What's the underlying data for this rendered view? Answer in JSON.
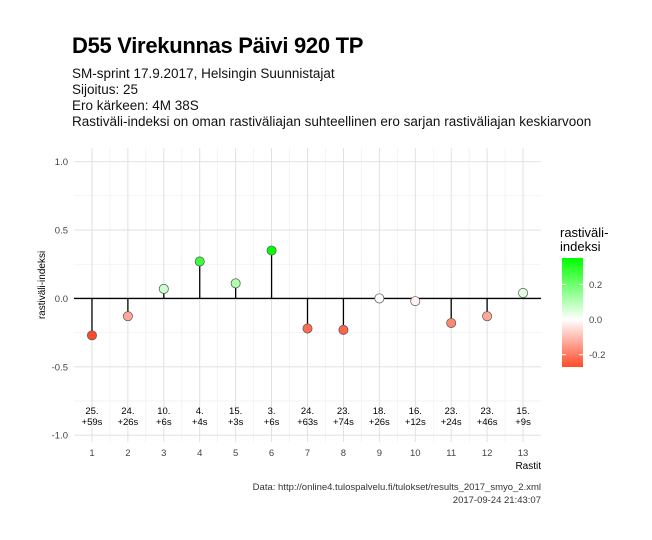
{
  "title": "D55 Virekunnas Päivi 920 TP",
  "subtitle_lines": [
    "SM-sprint 17.9.2017, Helsingin Suunnistajat",
    "Sijoitus: 25",
    "Ero kärkeen: 4M 38S",
    "Rastiväli-indeksi on oman rastiväliajan suhteellinen ero sarjan rastiväliajan keskiarvoon"
  ],
  "caption_lines": [
    "Data: http://online4.tulospalvelu.fi/tulokset/results_2017_smyo_2.xml",
    "2017-09-24 21:43:07"
  ],
  "chart_data": {
    "type": "scatter",
    "xlabel": "Rastit",
    "ylabel": "rastiväli-indeksi",
    "xlim": [
      0.5,
      13.5
    ],
    "ylim": [
      -1.05,
      1.1
    ],
    "x_ticks": [
      "1",
      "2",
      "3",
      "4",
      "5",
      "6",
      "7",
      "8",
      "9",
      "10",
      "11",
      "12",
      "13"
    ],
    "y_ticks": [
      1.0,
      0.5,
      0.0,
      -0.5,
      -1.0
    ],
    "y_tick_labels": [
      "1.0",
      "0.5",
      "0.0",
      "-0.5",
      "-1.0"
    ],
    "grid": true,
    "x": [
      1,
      2,
      3,
      4,
      5,
      6,
      7,
      8,
      9,
      10,
      11,
      12,
      13
    ],
    "values": [
      -0.27,
      -0.13,
      0.07,
      0.27,
      0.11,
      0.35,
      -0.22,
      -0.23,
      0.0,
      -0.02,
      -0.18,
      -0.13,
      0.04
    ],
    "labels_rank": [
      "25.",
      "24.",
      "10.",
      "4.",
      "15.",
      "3.",
      "24.",
      "23.",
      "18.",
      "16.",
      "23.",
      "23.",
      "15."
    ],
    "labels_diff": [
      "+59s",
      "+26s",
      "+6s",
      "+4s",
      "+3s",
      "+6s",
      "+63s",
      "+74s",
      "+26s",
      "+12s",
      "+24s",
      "+46s",
      "+9s"
    ],
    "legend": {
      "title_lines": [
        "rastiväli-",
        "indeksi"
      ],
      "ticks": [
        0.2,
        0.0,
        -0.2
      ],
      "tick_labels": [
        "0.2",
        "0.0",
        "-0.2"
      ],
      "range": [
        -0.27,
        0.35
      ],
      "colors": {
        "high": "#00ff00",
        "mid": "#ffffff",
        "low": "#ff4a2a"
      },
      "placement": "right"
    }
  }
}
